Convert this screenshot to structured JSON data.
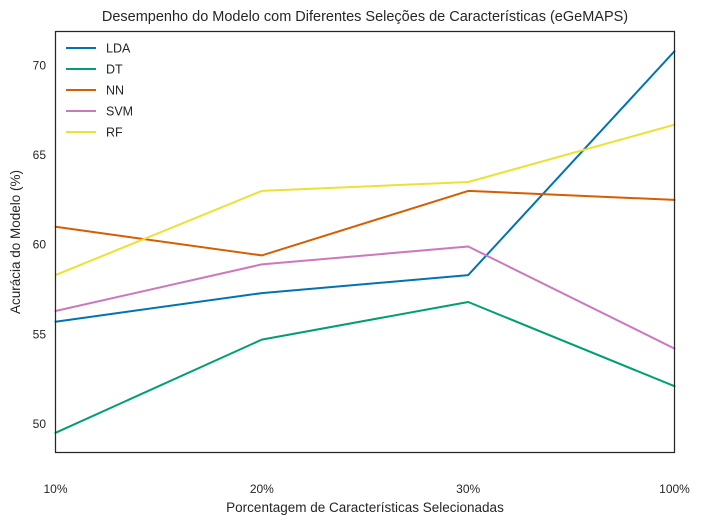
{
  "chart_data": {
    "type": "line",
    "title": "Desempenho do Modelo com Diferentes Seleções de Características (eGeMAPS)",
    "xlabel": "Porcentagem de Características Selecionadas",
    "ylabel": "Acurácia do Modelo (%)",
    "categories": [
      "10%",
      "20%",
      "30%",
      "100%"
    ],
    "ylim": [
      48.4,
      71.9
    ],
    "yticks": [
      50,
      55,
      60,
      65,
      70
    ],
    "grid": false,
    "legend_position": "top-left",
    "series": [
      {
        "name": "LDA",
        "color": "#0173b2",
        "values": [
          55.7,
          57.3,
          58.3,
          70.8
        ]
      },
      {
        "name": "DT",
        "color": "#029e73",
        "values": [
          49.5,
          54.7,
          56.8,
          52.1
        ]
      },
      {
        "name": "NN",
        "color": "#d55e00",
        "values": [
          61.0,
          59.4,
          63.0,
          62.5
        ]
      },
      {
        "name": "SVM",
        "color": "#cc78bc",
        "values": [
          56.3,
          58.9,
          59.9,
          54.2
        ]
      },
      {
        "name": "RF",
        "color": "#ece133",
        "values": [
          58.3,
          63.0,
          63.5,
          66.7
        ]
      }
    ]
  }
}
